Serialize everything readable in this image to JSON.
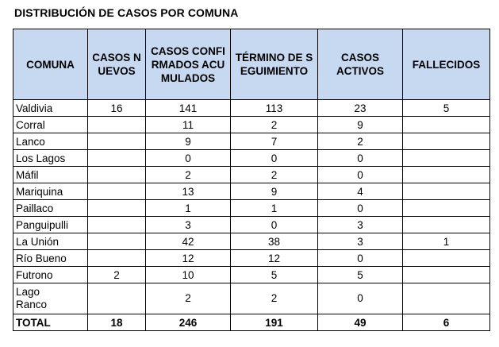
{
  "title": "DISTRIBUCIÓN DE CASOS POR COMUNA",
  "columns": [
    "COMUNA",
    "CASOS NUEVOS",
    "CASOS CONFIRMADOS ACUMULADOS",
    "TÉRMINO DE SEGUIMIENTO",
    "CASOS ACTIVOS",
    "FALLECIDOS"
  ],
  "rows": [
    {
      "comuna": "Valdivia",
      "nuevos": "16",
      "confirmados": "141",
      "termino": "113",
      "activos": "23",
      "fallecidos": "5"
    },
    {
      "comuna": "Corral",
      "nuevos": "",
      "confirmados": "11",
      "termino": "2",
      "activos": "9",
      "fallecidos": ""
    },
    {
      "comuna": "Lanco",
      "nuevos": "",
      "confirmados": "9",
      "termino": "7",
      "activos": "2",
      "fallecidos": ""
    },
    {
      "comuna": "Los Lagos",
      "nuevos": "",
      "confirmados": "0",
      "termino": "0",
      "activos": "0",
      "fallecidos": ""
    },
    {
      "comuna": "Máfil",
      "nuevos": "",
      "confirmados": "2",
      "termino": "2",
      "activos": "0",
      "fallecidos": ""
    },
    {
      "comuna": "Mariquina",
      "nuevos": "",
      "confirmados": "13",
      "termino": "9",
      "activos": "4",
      "fallecidos": ""
    },
    {
      "comuna": "Paillaco",
      "nuevos": "",
      "confirmados": "1",
      "termino": "1",
      "activos": "0",
      "fallecidos": ""
    },
    {
      "comuna": "Panguipulli",
      "nuevos": "",
      "confirmados": "3",
      "termino": "0",
      "activos": "3",
      "fallecidos": ""
    },
    {
      "comuna": "La Unión",
      "nuevos": "",
      "confirmados": "42",
      "termino": "38",
      "activos": "3",
      "fallecidos": "1"
    },
    {
      "comuna": "Río Bueno",
      "nuevos": "",
      "confirmados": "12",
      "termino": "12",
      "activos": "0",
      "fallecidos": ""
    },
    {
      "comuna": "Futrono",
      "nuevos": "2",
      "confirmados": "10",
      "termino": "5",
      "activos": "5",
      "fallecidos": ""
    },
    {
      "comuna": "Lago Ranco",
      "nuevos": "",
      "confirmados": "2",
      "termino": "2",
      "activos": "0",
      "fallecidos": ""
    }
  ],
  "total": {
    "comuna": "TOTAL",
    "nuevos": "18",
    "confirmados": "246",
    "termino": "191",
    "activos": "49",
    "fallecidos": "6"
  },
  "colors": {
    "header_bg": "#c6d9f1",
    "border": "#000000"
  }
}
